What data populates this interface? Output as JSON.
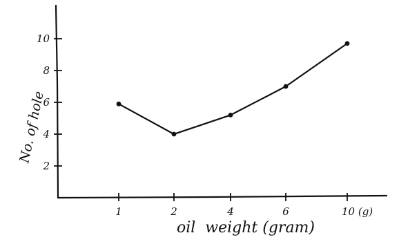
{
  "chart_data": {
    "type": "line",
    "title": "",
    "xlabel": "oil  weight (gram)",
    "ylabel": "No. of hole",
    "categories": [
      "1",
      "2",
      "4",
      "6",
      "10 (g)"
    ],
    "x": [
      1,
      2,
      4,
      6,
      10
    ],
    "series": [
      {
        "name": "",
        "values": [
          5.9,
          4.0,
          5.2,
          7.0,
          9.7
        ]
      }
    ],
    "yticks": [
      "2",
      "4",
      "6",
      "8",
      "10"
    ],
    "ylim": [
      0,
      12
    ],
    "grid": false,
    "legend": "none"
  }
}
